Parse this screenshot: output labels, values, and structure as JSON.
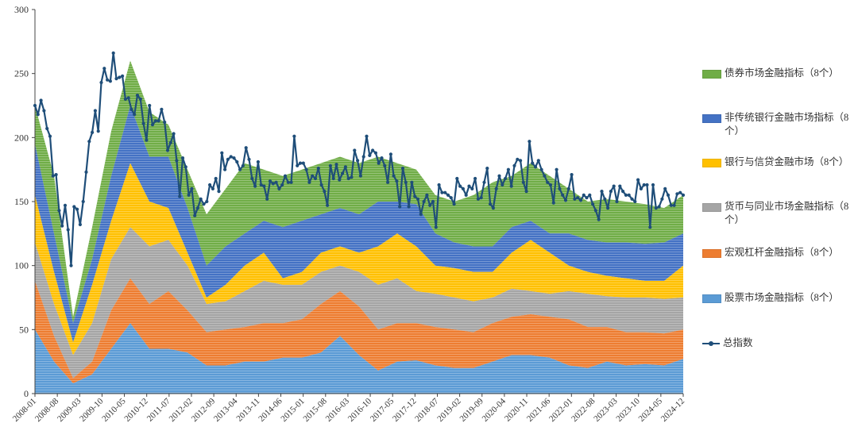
{
  "chart_data": {
    "type": "area",
    "stacked": true,
    "x_tick_labels": [
      "2008-01",
      "2008-08",
      "2009-03",
      "2009-10",
      "2010-05",
      "2010-12",
      "2011-07",
      "2012-02",
      "2012-09",
      "2013-04",
      "2013-11",
      "2014-06",
      "2015-01",
      "2015-08",
      "2016-03",
      "2016-10",
      "2017-05",
      "2017-12",
      "2018-07",
      "2019-02",
      "2019-09",
      "2020-04",
      "2020-11",
      "2021-06",
      "2022-01",
      "2022-08",
      "2023-03",
      "2023-10",
      "2024-05",
      "2024-12"
    ],
    "ylim": [
      0,
      300
    ],
    "y_ticks": [
      0,
      50,
      100,
      150,
      200,
      250,
      300
    ],
    "grid": false,
    "legend_position": "right",
    "series": [
      {
        "name": "股票市场金融指标（8个）",
        "color": "#5b9bd5",
        "values": [
          50,
          25,
          8,
          15,
          35,
          55,
          35,
          35,
          32,
          22,
          22,
          25,
          25,
          28,
          28,
          32,
          45,
          30,
          18,
          25,
          26,
          22,
          20,
          20,
          25,
          30,
          30,
          28,
          22,
          20,
          25,
          22,
          23,
          22,
          27
        ]
      },
      {
        "name": "宏观杠杆金融指标（8个）",
        "color": "#ed7d31",
        "values": [
          88,
          45,
          12,
          25,
          65,
          90,
          70,
          80,
          65,
          48,
          50,
          52,
          55,
          55,
          58,
          70,
          80,
          68,
          50,
          55,
          55,
          52,
          50,
          48,
          55,
          60,
          62,
          60,
          58,
          52,
          52,
          48,
          48,
          47,
          50
        ]
      },
      {
        "name": "货币与同业市场金融指标（8个）",
        "color": "#a5a5a5",
        "values": [
          118,
          70,
          30,
          55,
          105,
          130,
          115,
          120,
          100,
          70,
          72,
          80,
          88,
          85,
          85,
          95,
          100,
          95,
          85,
          90,
          80,
          78,
          75,
          72,
          75,
          82,
          80,
          78,
          80,
          78,
          76,
          75,
          75,
          74,
          75
        ]
      },
      {
        "name": "银行与信贷金融市场（8个）",
        "color": "#ffc000",
        "values": [
          155,
          95,
          40,
          85,
          135,
          180,
          150,
          145,
          110,
          75,
          85,
          100,
          110,
          90,
          95,
          110,
          115,
          110,
          115,
          125,
          115,
          100,
          98,
          95,
          95,
          110,
          120,
          110,
          100,
          95,
          92,
          90,
          88,
          88,
          100
        ]
      },
      {
        "name": "非传统银行金融市场指标（8个）",
        "color": "#4472c4",
        "values": [
          195,
          125,
          55,
          105,
          170,
          225,
          185,
          185,
          145,
          100,
          115,
          125,
          135,
          130,
          135,
          140,
          145,
          140,
          150,
          150,
          148,
          125,
          118,
          115,
          115,
          130,
          135,
          125,
          125,
          120,
          118,
          118,
          117,
          118,
          125
        ]
      },
      {
        "name": "债券市场金融指标（8个）",
        "color": "#70ad47",
        "values": [
          225,
          170,
          60,
          130,
          205,
          260,
          220,
          210,
          175,
          140,
          160,
          180,
          175,
          170,
          175,
          180,
          185,
          180,
          185,
          180,
          175,
          155,
          150,
          155,
          165,
          170,
          180,
          170,
          160,
          150,
          152,
          150,
          148,
          145,
          155
        ]
      }
    ],
    "total_index": {
      "name": "总指数",
      "color": "#1f4e79",
      "values": [
        225,
        218,
        229,
        221,
        207,
        201,
        170,
        171,
        143,
        131,
        147,
        128,
        100,
        146,
        144,
        132,
        150,
        173,
        197,
        204,
        221,
        205,
        243,
        254,
        245,
        244,
        266,
        246,
        247,
        248,
        230,
        231,
        222,
        218,
        233,
        230,
        211,
        198,
        225,
        210,
        213,
        213,
        222,
        212,
        190,
        196,
        203,
        182,
        154,
        184,
        177,
        155,
        160,
        139,
        145,
        152,
        148,
        150,
        163,
        160,
        168,
        158,
        188,
        175,
        183,
        185,
        184,
        181,
        175,
        178,
        192,
        183,
        168,
        162,
        181,
        163,
        162,
        152,
        166,
        164,
        165,
        160,
        163,
        170,
        165,
        165,
        201,
        178,
        180,
        180,
        175,
        165,
        170,
        168,
        176,
        163,
        158,
        147,
        178,
        168,
        179,
        167,
        172,
        177,
        168,
        169,
        190,
        182,
        170,
        185,
        201,
        186,
        190,
        188,
        180,
        184,
        178,
        165,
        187,
        170,
        166,
        146,
        176,
        165,
        146,
        165,
        154,
        152,
        140,
        150,
        155,
        147,
        150,
        130,
        163,
        157,
        157,
        155,
        153,
        148,
        168,
        162,
        160,
        155,
        162,
        160,
        168,
        152,
        153,
        165,
        176,
        148,
        145,
        160,
        170,
        163,
        168,
        175,
        162,
        178,
        183,
        182,
        165,
        158,
        197,
        180,
        177,
        182,
        175,
        170,
        165,
        163,
        149,
        175,
        160,
        155,
        151,
        160,
        171,
        152,
        153,
        151,
        155,
        153,
        155,
        148,
        143,
        136,
        158,
        152,
        145,
        158,
        162,
        150,
        162,
        158,
        155,
        155,
        152,
        150,
        167,
        160,
        163,
        163,
        130,
        163,
        145,
        146,
        152,
        160,
        155,
        147,
        147,
        156,
        157,
        155
      ]
    }
  }
}
